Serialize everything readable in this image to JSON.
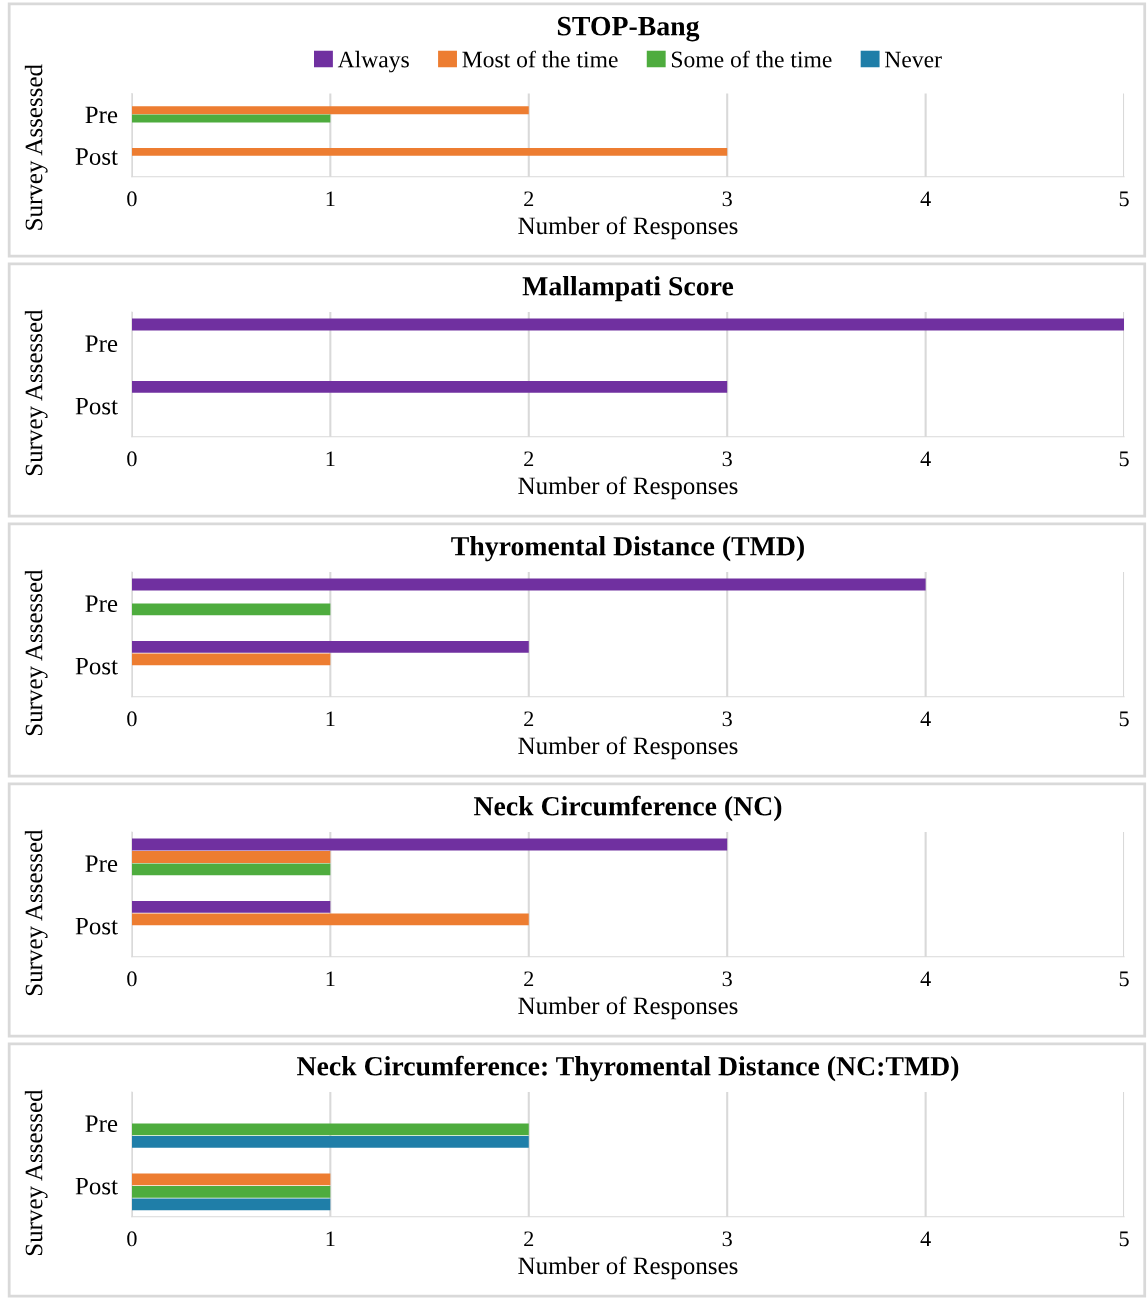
{
  "chart_data": [
    {
      "type": "bar",
      "orientation": "horizontal",
      "title": "STOP-Bang",
      "xlabel": "Number of Responses",
      "ylabel": "Survey Assessed",
      "categories": [
        "Pre",
        "Post"
      ],
      "xlim": [
        0,
        5
      ],
      "xticks": [
        0,
        1,
        2,
        3,
        4,
        5
      ],
      "grid": "x",
      "legend": "top",
      "series": [
        {
          "name": "Always",
          "color": "#7030a0",
          "values": [
            0,
            0
          ]
        },
        {
          "name": "Most of the time",
          "color": "#ed7d31",
          "values": [
            2,
            3
          ]
        },
        {
          "name": "Some of the time",
          "color": "#4eac3e",
          "values": [
            1,
            0
          ]
        },
        {
          "name": "Never",
          "color": "#1f7ea8",
          "values": [
            0,
            0
          ]
        }
      ]
    },
    {
      "type": "bar",
      "orientation": "horizontal",
      "title": "Mallampati Score",
      "xlabel": "Number of Responses",
      "ylabel": "Survey Assessed",
      "categories": [
        "Pre",
        "Post"
      ],
      "xlim": [
        0,
        5
      ],
      "xticks": [
        0,
        1,
        2,
        3,
        4,
        5
      ],
      "grid": "x",
      "series": [
        {
          "color": "#7030a0",
          "values": [
            5,
            3
          ]
        },
        {
          "color": "#ed7d31",
          "values": [
            0,
            0
          ]
        },
        {
          "color": "#4eac3e",
          "values": [
            0,
            0
          ]
        },
        {
          "color": "#1f7ea8",
          "values": [
            0,
            0
          ]
        }
      ]
    },
    {
      "type": "bar",
      "orientation": "horizontal",
      "title": "Thyromental Distance (TMD)",
      "xlabel": "Number of Responses",
      "ylabel": "Survey Assessed",
      "categories": [
        "Pre",
        "Post"
      ],
      "xlim": [
        0,
        5
      ],
      "xticks": [
        0,
        1,
        2,
        3,
        4,
        5
      ],
      "grid": "x",
      "series": [
        {
          "color": "#7030a0",
          "values": [
            4,
            2
          ]
        },
        {
          "color": "#ed7d31",
          "values": [
            0,
            1
          ]
        },
        {
          "color": "#4eac3e",
          "values": [
            1,
            0
          ]
        },
        {
          "color": "#1f7ea8",
          "values": [
            0,
            0
          ]
        }
      ]
    },
    {
      "type": "bar",
      "orientation": "horizontal",
      "title": "Neck Circumference (NC)",
      "xlabel": "Number of Responses",
      "ylabel": "Survey Assessed",
      "categories": [
        "Pre",
        "Post"
      ],
      "xlim": [
        0,
        5
      ],
      "xticks": [
        0,
        1,
        2,
        3,
        4,
        5
      ],
      "grid": "x",
      "series": [
        {
          "color": "#7030a0",
          "values": [
            3,
            1
          ]
        },
        {
          "color": "#ed7d31",
          "values": [
            1,
            2
          ]
        },
        {
          "color": "#4eac3e",
          "values": [
            1,
            0
          ]
        },
        {
          "color": "#1f7ea8",
          "values": [
            0,
            0
          ]
        }
      ]
    },
    {
      "type": "bar",
      "orientation": "horizontal",
      "title": "Neck Circumference: Thyromental Distance (NC:TMD)",
      "xlabel": "Number of Responses",
      "ylabel": "Survey Assessed",
      "categories": [
        "Pre",
        "Post"
      ],
      "xlim": [
        0,
        5
      ],
      "xticks": [
        0,
        1,
        2,
        3,
        4,
        5
      ],
      "grid": "x",
      "series": [
        {
          "color": "#7030a0",
          "values": [
            0,
            0
          ]
        },
        {
          "color": "#ed7d31",
          "values": [
            0,
            1
          ]
        },
        {
          "color": "#4eac3e",
          "values": [
            2,
            1
          ]
        },
        {
          "color": "#1f7ea8",
          "values": [
            2,
            1
          ]
        }
      ]
    }
  ]
}
